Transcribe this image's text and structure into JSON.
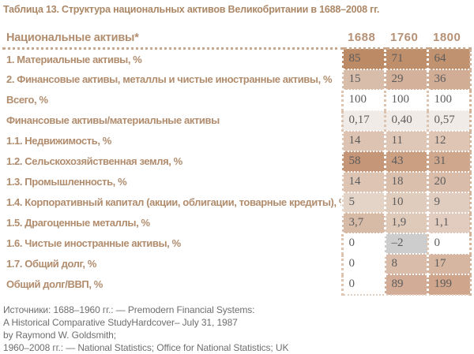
{
  "title": "Таблица 13. Структура национальных активов Великобритании в 1688–2008 гг.",
  "colors": {
    "accent_brown_title": "#ab8766",
    "accent_brown_labels": "#b18c6d",
    "accent_brown_years": "#b69175",
    "value_text": "#5c5c5c",
    "dotted_line": "#c9a98d",
    "footnote_gray": "#6e6e6e",
    "negative_cell_gray": "#cdcdcd"
  },
  "table": {
    "header": {
      "label": "Национальные активы*",
      "years": [
        "1688",
        "1760",
        "1800"
      ]
    },
    "rows": [
      {
        "label": "1. Материальные активы, %",
        "values": [
          "85",
          "71",
          "64"
        ],
        "bg": [
          "#bc8a64",
          "#bf8e6a",
          "#c19270"
        ]
      },
      {
        "label": "2. Финансовые активы, металлы и чистые иностранные активы, %",
        "values": [
          "15",
          "29",
          "36"
        ],
        "bg": [
          "#d9bdab",
          "#d4b19b",
          "#d1ad96"
        ]
      },
      {
        "label": "Всего, %",
        "values": [
          "100",
          "100",
          "100"
        ],
        "bg": [
          "#ffffff",
          "#ffffff",
          "#ffffff"
        ]
      },
      {
        "label": "Финансовые активы/материальные активы",
        "values": [
          "0,17",
          "0,40",
          "0,57"
        ],
        "bg": [
          "#f1ebe7",
          "#f1ebe7",
          "#f1ebe7"
        ]
      },
      {
        "label": "1.1. Недвижимость, %",
        "values": [
          "14",
          "11",
          "12"
        ],
        "bg": [
          "#ddc3b1",
          "#dfc7b7",
          "#dec5b4"
        ]
      },
      {
        "label": "1.2. Сельскохозяйственная земля, %",
        "values": [
          "58",
          "43",
          "31"
        ],
        "bg": [
          "#c69678",
          "#cb9f82",
          "#cfa78d"
        ]
      },
      {
        "label": "1.3. Промышленность, %",
        "values": [
          "14",
          "18",
          "20"
        ],
        "bg": [
          "#ddc4b3",
          "#dabfad",
          "#d9bdaa"
        ]
      },
      {
        "label": "1.4. Корпоративный капитал (акции, облигации, товарные кредиты), %",
        "values": [
          "5",
          "10",
          "9"
        ],
        "bg": [
          "#e4d3c7",
          "#e0ccbd",
          "#e1cdbf"
        ]
      },
      {
        "label": "1.5. Драгоценные металлы, %",
        "values": [
          "3,7",
          "1,9",
          "1,1"
        ],
        "bg": [
          "#d7bba7",
          "#dfc9b9",
          "#e1ccbf"
        ]
      },
      {
        "label": "1.6. Чистые иностранные активы, %",
        "values": [
          "0",
          "–2",
          "0"
        ],
        "bg": [
          "#ffffff",
          "#cdcdcd",
          "#ffffff"
        ]
      },
      {
        "label": "1.7. Общий долг, %",
        "values": [
          "0",
          "8",
          "17"
        ],
        "bg": [
          "#ffffff",
          "#d9bcaa",
          "#d6b6a1"
        ]
      },
      {
        "label": "Общий долг/ВВП, %",
        "values": [
          "0",
          "89",
          "199"
        ],
        "bg": [
          "#ffffff",
          "#d2ac96",
          "#cfa58b"
        ]
      }
    ]
  },
  "footnotes": [
    "Источники: 1688–1960 гг.: — Premodern Financial Systems:",
    "A Historical Comparative StudyHardcover– July 31, 1987",
    "by Raymond W. Goldsmith;",
    "1960–2008 гг.: — National Statistics; Office for National Statistics; UK"
  ]
}
